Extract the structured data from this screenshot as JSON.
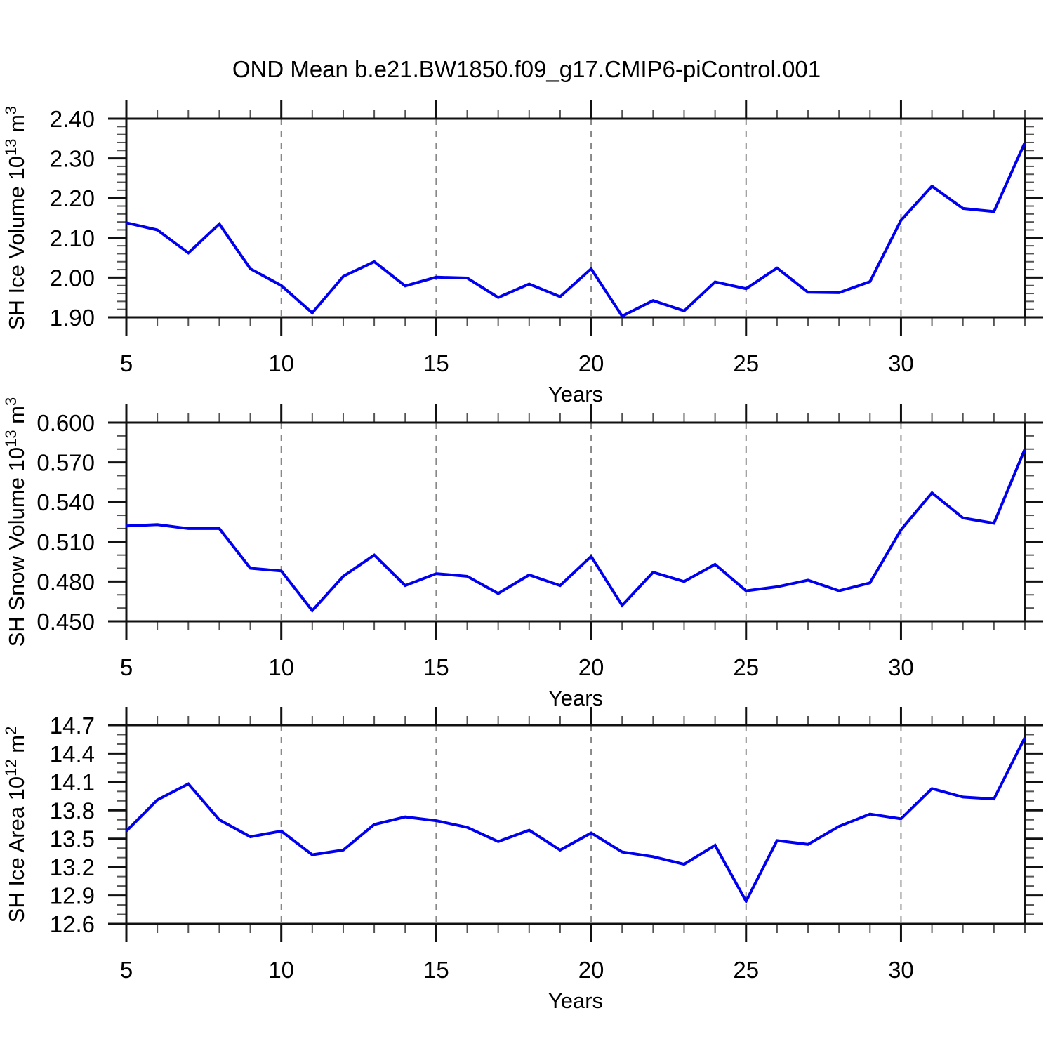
{
  "title": "OND Mean b.e21.BW1850.f09_g17.CMIP6-piControl.001",
  "colors": {
    "line": "#0000ee",
    "axis": "#111111",
    "grid": "#888888",
    "minor_tick": "#555555",
    "text": "#000000",
    "background": "#ffffff"
  },
  "chart_data": [
    {
      "id": "sh-ice-volume",
      "type": "line",
      "title": "",
      "ylabel": "SH Ice Volume 10^13 m^3",
      "xlabel": "Years",
      "x": [
        5,
        6,
        7,
        8,
        9,
        10,
        11,
        12,
        13,
        14,
        15,
        16,
        17,
        18,
        19,
        20,
        21,
        22,
        23,
        24,
        25,
        26,
        27,
        28,
        29,
        30,
        31,
        32,
        33,
        34
      ],
      "values": [
        2.138,
        2.12,
        2.062,
        2.135,
        2.022,
        1.98,
        1.911,
        2.003,
        2.04,
        1.979,
        2.001,
        1.999,
        1.95,
        1.984,
        1.952,
        2.022,
        1.903,
        1.942,
        1.916,
        1.989,
        1.972,
        2.024,
        1.963,
        1.962,
        1.99,
        2.144,
        2.23,
        2.174,
        2.166,
        2.34
      ],
      "xlim": [
        5,
        34
      ],
      "ylim": [
        1.9,
        2.4
      ],
      "yticks": [
        1.9,
        2.0,
        2.1,
        2.2,
        2.3,
        2.4
      ],
      "ytick_labels": [
        "1.90",
        "2.00",
        "2.10",
        "2.20",
        "2.30",
        "2.40"
      ],
      "yminor": [
        1.92,
        1.94,
        1.96,
        1.98,
        2.02,
        2.04,
        2.06,
        2.08,
        2.12,
        2.14,
        2.16,
        2.18,
        2.22,
        2.24,
        2.26,
        2.28,
        2.32,
        2.34,
        2.36,
        2.38
      ],
      "xticks": [
        5,
        10,
        15,
        20,
        25,
        30
      ],
      "xtick_labels": [
        "5",
        "10",
        "15",
        "20",
        "25",
        "30"
      ],
      "xminor": [
        6,
        7,
        8,
        9,
        11,
        12,
        13,
        14,
        16,
        17,
        18,
        19,
        21,
        22,
        23,
        24,
        26,
        27,
        28,
        29,
        31,
        32,
        33,
        34
      ],
      "xgrid": [
        10,
        15,
        20,
        25,
        30
      ],
      "grid_on": true,
      "legend": null
    },
    {
      "id": "sh-snow-volume",
      "type": "line",
      "title": "",
      "ylabel": "SH Snow Volume 10^13 m^3",
      "xlabel": "Years",
      "x": [
        5,
        6,
        7,
        8,
        9,
        10,
        11,
        12,
        13,
        14,
        15,
        16,
        17,
        18,
        19,
        20,
        21,
        22,
        23,
        24,
        25,
        26,
        27,
        28,
        29,
        30,
        31,
        32,
        33,
        34
      ],
      "values": [
        0.522,
        0.523,
        0.52,
        0.52,
        0.49,
        0.488,
        0.458,
        0.484,
        0.5,
        0.477,
        0.486,
        0.484,
        0.471,
        0.485,
        0.477,
        0.499,
        0.462,
        0.487,
        0.48,
        0.493,
        0.473,
        0.476,
        0.481,
        0.473,
        0.479,
        0.519,
        0.547,
        0.528,
        0.524,
        0.58
      ],
      "xlim": [
        5,
        34
      ],
      "ylim": [
        0.45,
        0.6
      ],
      "yticks": [
        0.45,
        0.48,
        0.51,
        0.54,
        0.57,
        0.6
      ],
      "ytick_labels": [
        "0.450",
        "0.480",
        "0.510",
        "0.540",
        "0.570",
        "0.600"
      ],
      "yminor": [
        0.46,
        0.47,
        0.49,
        0.5,
        0.52,
        0.53,
        0.55,
        0.56,
        0.58,
        0.59
      ],
      "xticks": [
        5,
        10,
        15,
        20,
        25,
        30
      ],
      "xtick_labels": [
        "5",
        "10",
        "15",
        "20",
        "25",
        "30"
      ],
      "xminor": [
        6,
        7,
        8,
        9,
        11,
        12,
        13,
        14,
        16,
        17,
        18,
        19,
        21,
        22,
        23,
        24,
        26,
        27,
        28,
        29,
        31,
        32,
        33,
        34
      ],
      "xgrid": [
        10,
        15,
        20,
        25,
        30
      ],
      "grid_on": true,
      "legend": null
    },
    {
      "id": "sh-ice-area",
      "type": "line",
      "title": "",
      "ylabel": "SH Ice Area 10^12 m^2",
      "xlabel": "Years",
      "x": [
        5,
        6,
        7,
        8,
        9,
        10,
        11,
        12,
        13,
        14,
        15,
        16,
        17,
        18,
        19,
        20,
        21,
        22,
        23,
        24,
        25,
        26,
        27,
        28,
        29,
        30,
        31,
        32,
        33,
        34
      ],
      "values": [
        13.58,
        13.91,
        14.08,
        13.7,
        13.52,
        13.58,
        13.33,
        13.38,
        13.65,
        13.73,
        13.69,
        13.62,
        13.47,
        13.59,
        13.38,
        13.56,
        13.36,
        13.31,
        13.23,
        13.43,
        12.84,
        13.48,
        13.44,
        13.63,
        13.76,
        13.71,
        14.03,
        13.94,
        13.92,
        14.57
      ],
      "xlim": [
        5,
        34
      ],
      "ylim": [
        12.6,
        14.7
      ],
      "yticks": [
        12.6,
        12.9,
        13.2,
        13.5,
        13.8,
        14.1,
        14.4,
        14.7
      ],
      "ytick_labels": [
        "12.6",
        "12.9",
        "13.2",
        "13.5",
        "13.8",
        "14.1",
        "14.4",
        "14.7"
      ],
      "yminor": [
        12.7,
        12.8,
        13.0,
        13.1,
        13.3,
        13.4,
        13.6,
        13.7,
        13.9,
        14.0,
        14.2,
        14.3,
        14.5,
        14.6
      ],
      "xticks": [
        5,
        10,
        15,
        20,
        25,
        30
      ],
      "xtick_labels": [
        "5",
        "10",
        "15",
        "20",
        "25",
        "30"
      ],
      "xminor": [
        6,
        7,
        8,
        9,
        11,
        12,
        13,
        14,
        16,
        17,
        18,
        19,
        21,
        22,
        23,
        24,
        26,
        27,
        28,
        29,
        31,
        32,
        33,
        34
      ],
      "xgrid": [
        10,
        15,
        20,
        25,
        30
      ],
      "grid_on": true,
      "legend": null
    }
  ]
}
